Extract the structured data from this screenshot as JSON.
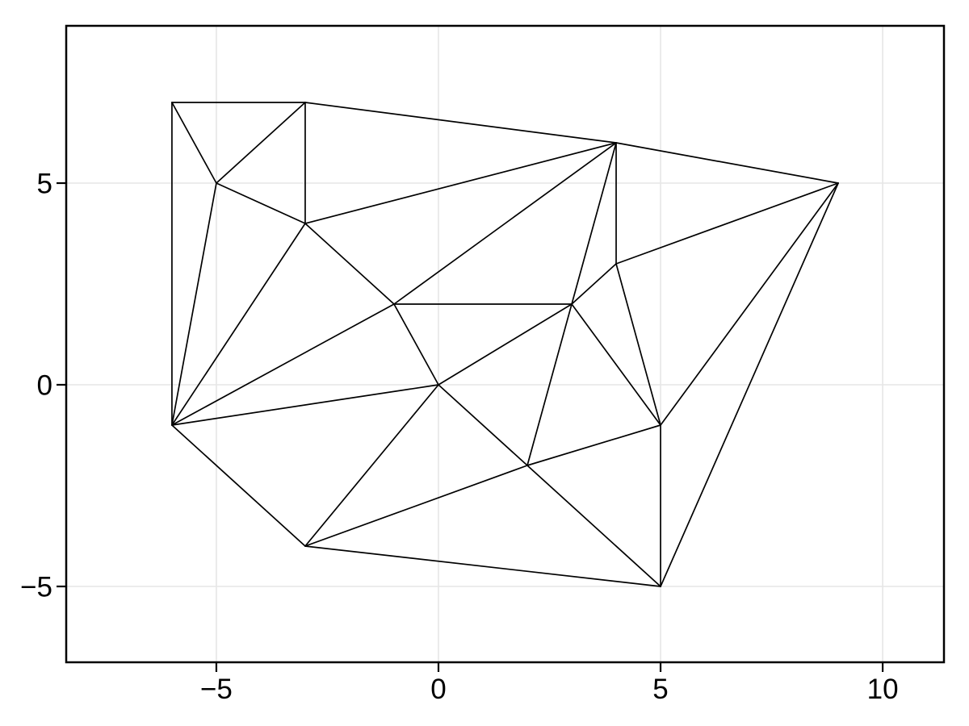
{
  "figure": {
    "title": "",
    "background_color": "#ffffff"
  },
  "chart_data": {
    "type": "line",
    "variant": "delaunay-triangulation-wireframe",
    "title": "",
    "xlabel": "",
    "ylabel": "",
    "grid": true,
    "legend": false,
    "line_color": "#000000",
    "grid_color": "#e6e6e6",
    "frame_color": "#000000",
    "tick_color": "#000000",
    "tick_label_color": "#000000",
    "xlim": [
      -8.38,
      11.38
    ],
    "ylim": [
      -6.88,
      8.9
    ],
    "x_ticks": [
      -5,
      0,
      5,
      10
    ],
    "x_tick_labels": [
      "−5",
      "0",
      "5",
      "10"
    ],
    "y_ticks": [
      -5,
      0,
      5
    ],
    "y_tick_labels": [
      "−5",
      "0",
      "5"
    ],
    "points": [
      [
        -6,
        7
      ],
      [
        -3,
        7
      ],
      [
        -5,
        5
      ],
      [
        -3,
        4
      ],
      [
        4,
        6
      ],
      [
        9,
        5
      ],
      [
        4,
        3
      ],
      [
        -1,
        2
      ],
      [
        3,
        2
      ],
      [
        0,
        0
      ],
      [
        -6,
        -1
      ],
      [
        2,
        -2
      ],
      [
        5,
        -1
      ],
      [
        -3,
        -4
      ],
      [
        5,
        -5
      ]
    ],
    "edges": [
      [
        0,
        1
      ],
      [
        1,
        4
      ],
      [
        4,
        5
      ],
      [
        5,
        14
      ],
      [
        14,
        13
      ],
      [
        13,
        10
      ],
      [
        10,
        0
      ],
      [
        0,
        2
      ],
      [
        1,
        2
      ],
      [
        1,
        3
      ],
      [
        2,
        3
      ],
      [
        2,
        10
      ],
      [
        3,
        10
      ],
      [
        3,
        4
      ],
      [
        3,
        7
      ],
      [
        7,
        10
      ],
      [
        7,
        4
      ],
      [
        7,
        8
      ],
      [
        7,
        9
      ],
      [
        8,
        9
      ],
      [
        8,
        4
      ],
      [
        8,
        6
      ],
      [
        8,
        11
      ],
      [
        8,
        12
      ],
      [
        9,
        10
      ],
      [
        9,
        11
      ],
      [
        9,
        13
      ],
      [
        6,
        4
      ],
      [
        6,
        5
      ],
      [
        6,
        12
      ],
      [
        12,
        5
      ],
      [
        12,
        14
      ],
      [
        11,
        12
      ],
      [
        11,
        13
      ],
      [
        11,
        14
      ]
    ]
  }
}
